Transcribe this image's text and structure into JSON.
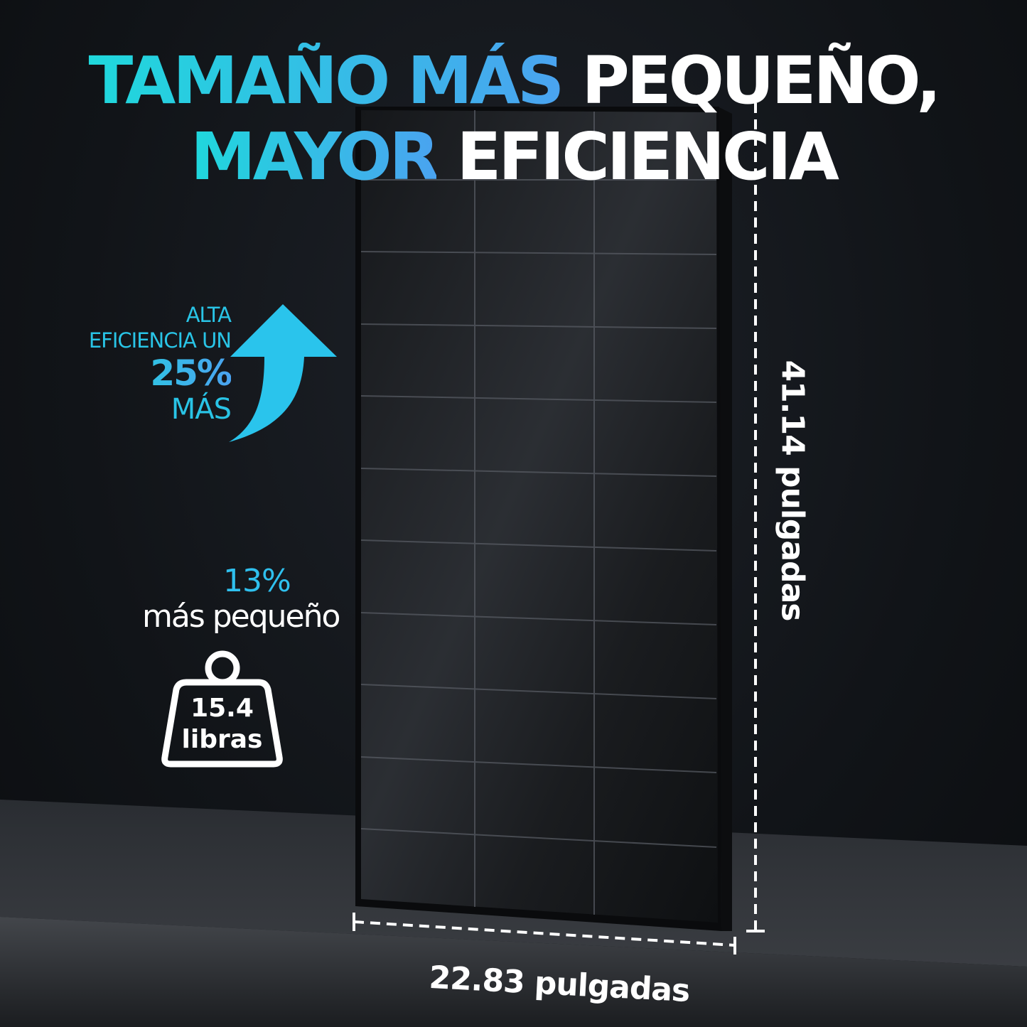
{
  "headline": {
    "line1_accent": "TAMAÑO MÁS",
    "line1_rest": "PEQUEÑO,",
    "line2_accent": "MAYOR",
    "line2_rest": "EFICIENCIA"
  },
  "efficiency": {
    "line1": "ALTA",
    "line2": "EFICIENCIA UN",
    "value": "25%",
    "line3": "MÁS",
    "icon": "arrow-up-curved-icon"
  },
  "size": {
    "value": "13%",
    "label": "más pequeño"
  },
  "weight": {
    "value": "15.4",
    "unit": "libras",
    "icon": "weight-icon"
  },
  "dimensions": {
    "height": "41.14 pulgadas",
    "width": "22.83 pulgadas"
  },
  "colors": {
    "accent_start": "#1fd8dc",
    "accent_end": "#4aa3f0"
  }
}
